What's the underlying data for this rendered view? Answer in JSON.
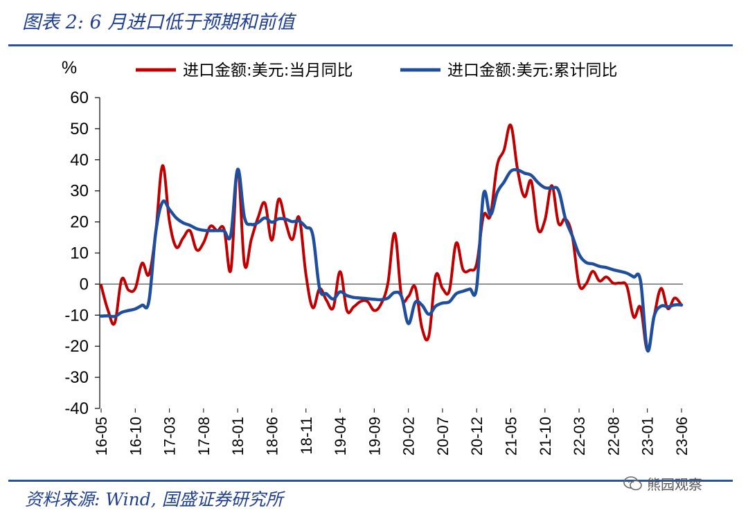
{
  "figure": {
    "title": "图表 2:  6 月进口低于预期和前值",
    "source": "资料来源:  Wind,  国盛证券研究所",
    "watermark": "熊园观察"
  },
  "colors": {
    "accent": "#1f3f93",
    "series_red": "#c00000",
    "series_blue": "#1f4e9c"
  },
  "chart_data": {
    "type": "line",
    "ylabel": "%",
    "ylim": [
      -40,
      60
    ],
    "yticks": [
      60,
      50,
      40,
      30,
      20,
      10,
      0,
      -10,
      -20,
      -30,
      -40
    ],
    "xtick_labels": [
      "16-05",
      "16-10",
      "17-03",
      "17-08",
      "18-01",
      "18-06",
      "18-11",
      "19-04",
      "19-09",
      "20-02",
      "20-07",
      "20-12",
      "21-05",
      "21-10",
      "22-03",
      "22-08",
      "23-01",
      "23-06"
    ],
    "xtick_dates": [
      "2016-05",
      "2016-10",
      "2017-03",
      "2017-08",
      "2018-01",
      "2018-06",
      "2018-11",
      "2019-04",
      "2019-09",
      "2020-02",
      "2020-07",
      "2020-12",
      "2021-05",
      "2021-10",
      "2022-03",
      "2022-08",
      "2023-01",
      "2023-06"
    ],
    "legend_position": "top",
    "grid": false,
    "series": [
      {
        "name": "进口金额:美元:当月同比",
        "color": "#c00000",
        "points": [
          [
            "2016-05",
            -0.4
          ],
          [
            "2016-06",
            -8.4
          ],
          [
            "2016-07",
            -12.5
          ],
          [
            "2016-08",
            1.5
          ],
          [
            "2016-09",
            -1.9
          ],
          [
            "2016-10",
            -1.4
          ],
          [
            "2016-11",
            6.7
          ],
          [
            "2016-12",
            3.1
          ],
          [
            "2017-01",
            16.7
          ],
          [
            "2017-02",
            38.1
          ],
          [
            "2017-03",
            20.3
          ],
          [
            "2017-04",
            11.9
          ],
          [
            "2017-05",
            14.8
          ],
          [
            "2017-06",
            17.2
          ],
          [
            "2017-07",
            11.0
          ],
          [
            "2017-08",
            13.3
          ],
          [
            "2017-09",
            18.6
          ],
          [
            "2017-10",
            17.2
          ],
          [
            "2017-11",
            17.7
          ],
          [
            "2017-12",
            4.5
          ],
          [
            "2018-01",
            36.9
          ],
          [
            "2018-02",
            6.3
          ],
          [
            "2018-03",
            14.4
          ],
          [
            "2018-04",
            21.5
          ],
          [
            "2018-05",
            26.0
          ],
          [
            "2018-06",
            14.1
          ],
          [
            "2018-07",
            27.3
          ],
          [
            "2018-08",
            20.0
          ],
          [
            "2018-09",
            14.3
          ],
          [
            "2018-10",
            21.4
          ],
          [
            "2018-11",
            3.0
          ],
          [
            "2018-12",
            -7.6
          ],
          [
            "2019-01",
            -1.5
          ],
          [
            "2019-02",
            -5.2
          ],
          [
            "2019-03",
            -7.6
          ],
          [
            "2019-04",
            4.0
          ],
          [
            "2019-05",
            -8.5
          ],
          [
            "2019-06",
            -7.3
          ],
          [
            "2019-07",
            -5.6
          ],
          [
            "2019-08",
            -5.6
          ],
          [
            "2019-09",
            -8.5
          ],
          [
            "2019-10",
            -6.4
          ],
          [
            "2019-11",
            0.3
          ],
          [
            "2019-12",
            16.3
          ],
          [
            "2020-01",
            -4.0
          ],
          [
            "2020-02",
            -4.0
          ],
          [
            "2020-03",
            -1.0
          ],
          [
            "2020-04",
            -14.2
          ],
          [
            "2020-05",
            -16.7
          ],
          [
            "2020-06",
            2.7
          ],
          [
            "2020-07",
            -1.4
          ],
          [
            "2020-08",
            -2.1
          ],
          [
            "2020-09",
            13.2
          ],
          [
            "2020-10",
            4.7
          ],
          [
            "2020-11",
            4.5
          ],
          [
            "2020-12",
            6.5
          ],
          [
            "2021-01",
            22.0
          ],
          [
            "2021-02",
            22.0
          ],
          [
            "2021-03",
            38.1
          ],
          [
            "2021-04",
            43.1
          ],
          [
            "2021-05",
            51.1
          ],
          [
            "2021-06",
            36.7
          ],
          [
            "2021-07",
            28.1
          ],
          [
            "2021-08",
            33.1
          ],
          [
            "2021-09",
            17.6
          ],
          [
            "2021-10",
            20.6
          ],
          [
            "2021-11",
            31.7
          ],
          [
            "2021-12",
            19.5
          ],
          [
            "2022-01",
            21.0
          ],
          [
            "2022-02",
            15.5
          ],
          [
            "2022-03",
            -0.1
          ],
          [
            "2022-04",
            0.0
          ],
          [
            "2022-05",
            4.1
          ],
          [
            "2022-06",
            1.0
          ],
          [
            "2022-07",
            2.3
          ],
          [
            "2022-08",
            0.3
          ],
          [
            "2022-09",
            0.3
          ],
          [
            "2022-10",
            -0.7
          ],
          [
            "2022-11",
            -10.6
          ],
          [
            "2022-12",
            -7.5
          ],
          [
            "2023-01",
            -21.3
          ],
          [
            "2023-02",
            -10.2
          ],
          [
            "2023-03",
            -1.4
          ],
          [
            "2023-04",
            -7.9
          ],
          [
            "2023-05",
            -4.5
          ],
          [
            "2023-06",
            -6.8
          ]
        ]
      },
      {
        "name": "进口金额:美元:累计同比",
        "color": "#1f4e9c",
        "points": [
          [
            "2016-05",
            -10.3
          ],
          [
            "2016-06",
            -10.2
          ],
          [
            "2016-07",
            -10.4
          ],
          [
            "2016-08",
            -9.1
          ],
          [
            "2016-09",
            -8.5
          ],
          [
            "2016-10",
            -8.0
          ],
          [
            "2016-11",
            -6.8
          ],
          [
            "2016-12",
            -5.5
          ],
          [
            "2017-01",
            16.7
          ],
          [
            "2017-02",
            26.4
          ],
          [
            "2017-03",
            24.0
          ],
          [
            "2017-04",
            21.3
          ],
          [
            "2017-05",
            19.7
          ],
          [
            "2017-06",
            18.9
          ],
          [
            "2017-07",
            17.8
          ],
          [
            "2017-08",
            17.3
          ],
          [
            "2017-09",
            17.2
          ],
          [
            "2017-10",
            17.2
          ],
          [
            "2017-11",
            17.1
          ],
          [
            "2017-12",
            15.9
          ],
          [
            "2018-01",
            36.9
          ],
          [
            "2018-02",
            21.4
          ],
          [
            "2018-03",
            19.2
          ],
          [
            "2018-04",
            19.8
          ],
          [
            "2018-05",
            21.3
          ],
          [
            "2018-06",
            19.9
          ],
          [
            "2018-07",
            21.0
          ],
          [
            "2018-08",
            20.9
          ],
          [
            "2018-09",
            20.1
          ],
          [
            "2018-10",
            20.3
          ],
          [
            "2018-11",
            18.3
          ],
          [
            "2018-12",
            15.8
          ],
          [
            "2019-01",
            -1.5
          ],
          [
            "2019-02",
            -3.1
          ],
          [
            "2019-03",
            -4.8
          ],
          [
            "2019-04",
            -2.5
          ],
          [
            "2019-05",
            -3.7
          ],
          [
            "2019-06",
            -4.3
          ],
          [
            "2019-07",
            -4.5
          ],
          [
            "2019-08",
            -4.7
          ],
          [
            "2019-09",
            -4.9
          ],
          [
            "2019-10",
            -5.0
          ],
          [
            "2019-11",
            -4.5
          ],
          [
            "2019-12",
            -2.7
          ],
          [
            "2020-01",
            -4.0
          ],
          [
            "2020-02",
            -12.7
          ],
          [
            "2020-03",
            -5.9
          ],
          [
            "2020-04",
            -6.8
          ],
          [
            "2020-05",
            -9.7
          ],
          [
            "2020-06",
            -7.1
          ],
          [
            "2020-07",
            -6.1
          ],
          [
            "2020-08",
            -5.7
          ],
          [
            "2020-09",
            -3.1
          ],
          [
            "2020-10",
            -2.3
          ],
          [
            "2020-11",
            -1.6
          ],
          [
            "2020-12",
            -1.1
          ],
          [
            "2021-01",
            28.9
          ],
          [
            "2021-02",
            22.2
          ],
          [
            "2021-03",
            29.4
          ],
          [
            "2021-04",
            32.8
          ],
          [
            "2021-05",
            36.3
          ],
          [
            "2021-06",
            36.7
          ],
          [
            "2021-07",
            35.7
          ],
          [
            "2021-08",
            35.0
          ],
          [
            "2021-09",
            32.6
          ],
          [
            "2021-10",
            31.0
          ],
          [
            "2021-11",
            30.9
          ],
          [
            "2021-12",
            30.1
          ],
          [
            "2022-01",
            21.0
          ],
          [
            "2022-02",
            15.5
          ],
          [
            "2022-03",
            9.6
          ],
          [
            "2022-04",
            7.0
          ],
          [
            "2022-05",
            6.5
          ],
          [
            "2022-06",
            5.7
          ],
          [
            "2022-07",
            5.3
          ],
          [
            "2022-08",
            4.6
          ],
          [
            "2022-09",
            4.1
          ],
          [
            "2022-10",
            3.5
          ],
          [
            "2022-11",
            2.3
          ],
          [
            "2022-12",
            1.1
          ],
          [
            "2023-01",
            -21.3
          ],
          [
            "2023-02",
            -10.2
          ],
          [
            "2023-03",
            -7.1
          ],
          [
            "2023-04",
            -7.3
          ],
          [
            "2023-05",
            -6.7
          ],
          [
            "2023-06",
            -6.7
          ]
        ]
      }
    ]
  }
}
